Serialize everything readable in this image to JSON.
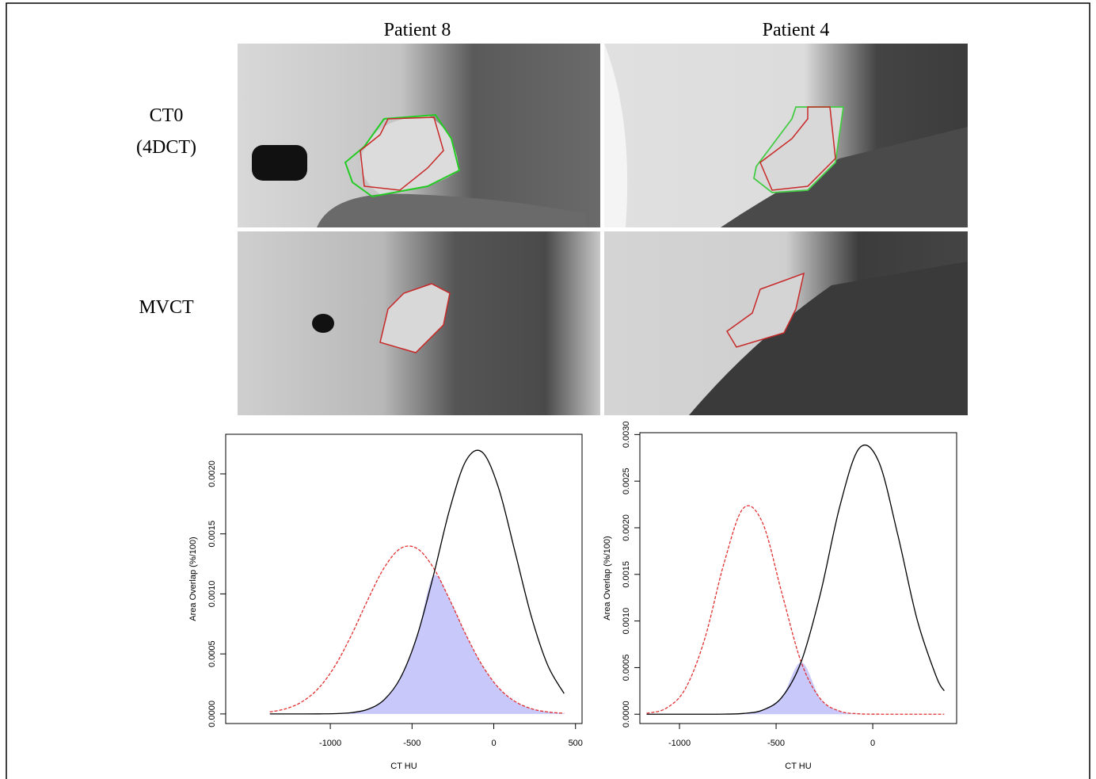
{
  "column_labels": [
    "Patient 8",
    "Patient 4"
  ],
  "row_labels": [
    [
      "CT0",
      "(4DCT)"
    ],
    [
      "MVCT"
    ]
  ],
  "chart_data": [
    {
      "type": "line",
      "x_label": "CT HU",
      "y_label": "Area Overlap (%/100)",
      "x": [
        -1370,
        -1270,
        -1170,
        -1070,
        -970,
        -870,
        -770,
        -670,
        -570,
        -470,
        -370,
        -270,
        -170,
        -70,
        30,
        130,
        230,
        330,
        430
      ],
      "series": [
        {
          "name": "MVCT",
          "color": "#e03030",
          "linestyle": "dashed",
          "values": [
            1.64e-05,
            4.39e-05,
            0.000104,
            0.000217,
            0.000403,
            0.000659,
            0.000953,
            0.001219,
            0.001379,
            0.001379,
            0.001219,
            0.000953,
            0.000659,
            0.000403,
            0.000217,
            0.000104,
            4.39e-05,
            1.64e-05,
            5.4e-06
          ]
        },
        {
          "name": "CT0",
          "color": "#000000",
          "linestyle": "solid",
          "values": [
            0,
            0,
            0,
            5e-07,
            2.4e-06,
            1.06e-05,
            3.87e-05,
            0.000119,
            0.000303,
            0.000645,
            0.001148,
            0.001704,
            0.00211,
            0.00218,
            0.00188,
            0.00135,
            0.000811,
            0.000406,
            0.00017
          ]
        }
      ],
      "overlap_color": "#c8c8fa",
      "xlim": [
        -1640,
        540
      ],
      "ylim": [
        -8e-05,
        0.00233
      ],
      "xticks": [
        -1000,
        -500,
        0,
        500
      ],
      "yticks": [
        {
          "value": 0,
          "label": "0.0000"
        },
        {
          "value": 0.0005,
          "label": "0.0005"
        },
        {
          "value": 0.001,
          "label": "0.0010"
        },
        {
          "value": 0.0015,
          "label": "0.0015"
        },
        {
          "value": 0.002,
          "label": "0.0020"
        }
      ]
    },
    {
      "type": "line",
      "x_label": "CT HU",
      "y_label": "Area Overlap (%/100)",
      "x": [
        -1170,
        -1070,
        -970,
        -870,
        -770,
        -670,
        -570,
        -470,
        -370,
        -270,
        -170,
        -70,
        30,
        130,
        230,
        330,
        370
      ],
      "series": [
        {
          "name": "MVCT",
          "color": "#e03030",
          "linestyle": "dashed",
          "values": [
            9.8e-06,
            6.26e-05,
            0.000272,
            0.000804,
            0.001616,
            0.002209,
            0.002053,
            0.001297,
            0.000557,
            0.000163,
            3.23e-05,
            4.4e-06,
            4e-07,
            0,
            0,
            0,
            0
          ]
        },
        {
          "name": "CT0",
          "color": "#000000",
          "linestyle": "solid",
          "values": [
            0,
            0,
            0,
            1e-07,
            1e-06,
            7.8e-06,
            4.37e-05,
            0.000182,
            0.000564,
            0.0013,
            0.002233,
            0.002853,
            0.002714,
            0.001921,
            0.001012,
            0.000397,
            0.000251
          ]
        }
      ],
      "overlap_color": "#c8c8fa",
      "xlim": [
        -1205,
        434
      ],
      "ylim": [
        -0.0001,
        0.00302
      ],
      "xticks": [
        -1000,
        -500,
        0
      ],
      "yticks": [
        {
          "value": 0,
          "label": "0.0000"
        },
        {
          "value": 0.0005,
          "label": "0.0005"
        },
        {
          "value": 0.001,
          "label": "0.0010"
        },
        {
          "value": 0.0015,
          "label": "0.0015"
        },
        {
          "value": 0.002,
          "label": "0.0020"
        },
        {
          "value": 0.0025,
          "label": "0.0025"
        },
        {
          "value": 0.003,
          "label": "0.0030"
        }
      ]
    }
  ]
}
